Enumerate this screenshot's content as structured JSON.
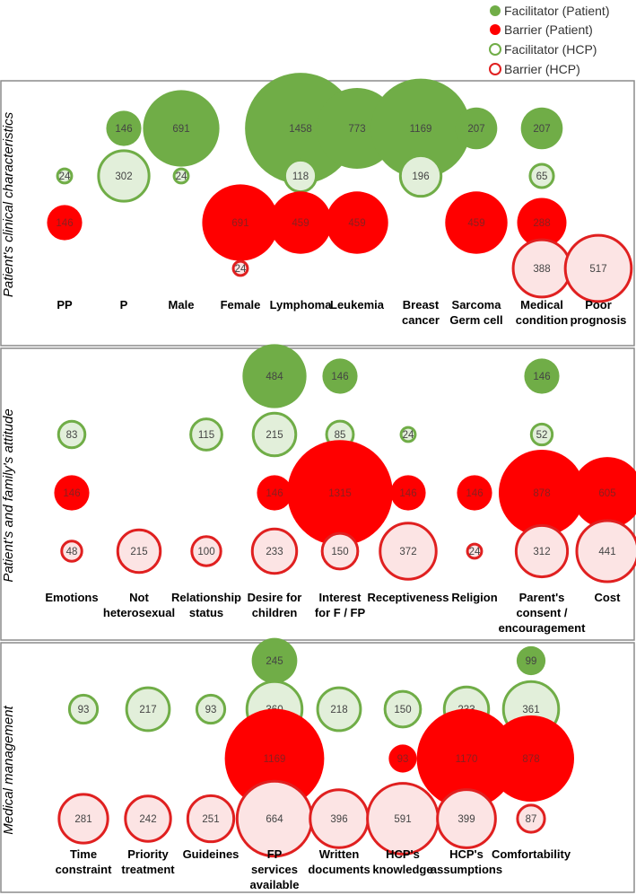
{
  "legend": [
    {
      "key": "fp",
      "label": "Facilitator (Patient)"
    },
    {
      "key": "bp",
      "label": "Barrier (Patient)"
    },
    {
      "key": "fh",
      "label": "Facilitator (HCP)"
    },
    {
      "key": "bh",
      "label": "Barrier (HCP)"
    }
  ],
  "colors": {
    "fp_fill": "#70ad47",
    "bp_fill": "#ff0000",
    "fh_stroke": "#70ad47",
    "fh_fill": "#e2efda",
    "bh_stroke": "#e02020",
    "bh_fill": "#fce4e4",
    "frame": "#8c8c8c"
  },
  "chart_data": {
    "type": "bubble",
    "rows": [
      "Facilitator (Patient)",
      "Facilitator (HCP)",
      "Barrier (Patient)",
      "Barrier (HCP)"
    ],
    "value_note": "Bubble size proportional to value",
    "panels": [
      {
        "title": "Patient's clinical characteristics",
        "categories": [
          {
            "label": [
              "PP"
            ],
            "fp": null,
            "fh": 24,
            "bp": 146,
            "bh": null
          },
          {
            "label": [
              "P"
            ],
            "fp": 146,
            "fh": 302,
            "bp": null,
            "bh": null
          },
          {
            "label": [
              "Male"
            ],
            "fp": 691,
            "fh": 24,
            "bp": null,
            "bh": null
          },
          {
            "label": [
              "Female"
            ],
            "fp": null,
            "fh": null,
            "bp": 691,
            "bh": 24
          },
          {
            "label": [
              "Lymphoma"
            ],
            "fp": 1458,
            "fh": 118,
            "bp": 459,
            "bh": null
          },
          {
            "label": [
              "Leukemia"
            ],
            "fp": 773,
            "fh": null,
            "bp": 459,
            "bh": null
          },
          {
            "label": [
              "Breast",
              "cancer"
            ],
            "fp": 1169,
            "fh": 196,
            "bp": null,
            "bh": null
          },
          {
            "label": [
              "Sarcoma",
              "Germ cell"
            ],
            "fp": 207,
            "fh": null,
            "bp": 459,
            "bh": null
          },
          {
            "label": [
              "Medical",
              "condition"
            ],
            "fp": 207,
            "fh": 65,
            "bp": 288,
            "bh": 388
          },
          {
            "label": [
              "Poor",
              "prognosis"
            ],
            "fp": null,
            "fh": null,
            "bp": null,
            "bh": 517
          }
        ]
      },
      {
        "title": "Patient's and family's attitude",
        "categories": [
          {
            "label": [
              "Emotions"
            ],
            "fp": null,
            "fh": 83,
            "bp": 146,
            "bh": 48
          },
          {
            "label": [
              "Not",
              "heterosexual"
            ],
            "fp": null,
            "fh": null,
            "bp": null,
            "bh": 215
          },
          {
            "label": [
              "Relationship",
              "status"
            ],
            "fp": null,
            "fh": 115,
            "bp": null,
            "bh": 100
          },
          {
            "label": [
              "Desire for",
              "children"
            ],
            "fp": 484,
            "fh": 215,
            "bp": 146,
            "bh": 233
          },
          {
            "label": [
              "Interest",
              "for F / FP"
            ],
            "fp": 146,
            "fh": 85,
            "bp": 1315,
            "bh": 150
          },
          {
            "label": [
              "Receptiveness"
            ],
            "fp": null,
            "fh": 24,
            "bp": 146,
            "bh": 372
          },
          {
            "label": [
              "Religion"
            ],
            "fp": null,
            "fh": null,
            "bp": 146,
            "bh": 24
          },
          {
            "label": [
              "Parent's",
              "consent /",
              "encouragement"
            ],
            "fp": 146,
            "fh": 52,
            "bp": 878,
            "bh": 312
          },
          {
            "label": [
              "Cost"
            ],
            "fp": null,
            "fh": null,
            "bp": 605,
            "bh": 441
          }
        ]
      },
      {
        "title": "Medical management",
        "categories": [
          {
            "label": [
              "Time",
              "constraint"
            ],
            "fp": null,
            "fh": 93,
            "bp": null,
            "bh": 281
          },
          {
            "label": [
              "Priority",
              "treatment"
            ],
            "fp": null,
            "fh": 217,
            "bp": null,
            "bh": 242
          },
          {
            "label": [
              "Guideines"
            ],
            "fp": null,
            "fh": 93,
            "bp": null,
            "bh": 251
          },
          {
            "label": [
              "FP",
              "services",
              "available"
            ],
            "fp": 245,
            "fh": 360,
            "bp": 1169,
            "bh": 664
          },
          {
            "label": [
              "Written",
              "documents"
            ],
            "fp": null,
            "fh": 218,
            "bp": null,
            "bh": 396
          },
          {
            "label": [
              "HCP's",
              "knowledge"
            ],
            "fp": null,
            "fh": 150,
            "bp": 93,
            "bh": 591
          },
          {
            "label": [
              "HCP's",
              "assumptions"
            ],
            "fp": null,
            "fh": 233,
            "bp": 1170,
            "bh": 399
          },
          {
            "label": [
              "Comfortability"
            ],
            "fp": 99,
            "fh": 361,
            "bp": 878,
            "bh": 87
          }
        ]
      }
    ]
  }
}
